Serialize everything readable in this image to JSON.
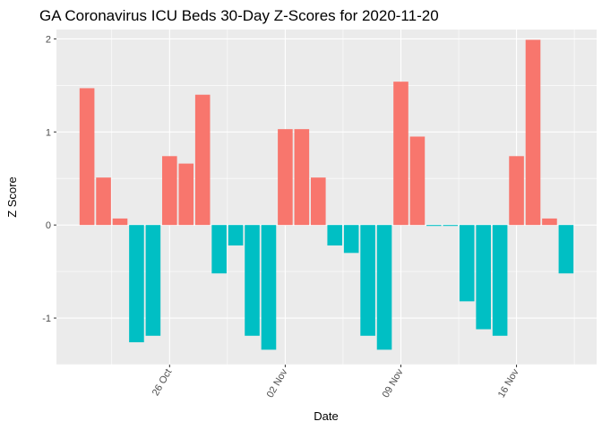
{
  "chart_data": {
    "type": "bar",
    "title": "GA Coronavirus ICU Beds 30-Day Z-Scores for 2020-11-20",
    "xlabel": "Date",
    "ylabel": "Z Score",
    "x_start": "2020-10-21",
    "x_end": "2020-11-19",
    "x_ticks": [
      {
        "label": "26 Oct",
        "date": "2020-10-26"
      },
      {
        "label": "02 Nov",
        "date": "2020-11-02"
      },
      {
        "label": "09 Nov",
        "date": "2020-11-09"
      },
      {
        "label": "16 Nov",
        "date": "2020-11-16"
      }
    ],
    "y_ticks": [
      {
        "label": "-1",
        "value": -1
      },
      {
        "label": "0",
        "value": 0
      },
      {
        "label": "1",
        "value": 1
      },
      {
        "label": "2",
        "value": 2
      }
    ],
    "ylim": [
      -1.5,
      2.1
    ],
    "grid": true,
    "colors": {
      "positive": "#F8766D",
      "negative": "#00BFC4",
      "panel": "#EBEBEB",
      "grid": "#FFFFFF"
    },
    "x": [
      "2020-10-21",
      "2020-10-22",
      "2020-10-23",
      "2020-10-24",
      "2020-10-25",
      "2020-10-26",
      "2020-10-27",
      "2020-10-28",
      "2020-10-29",
      "2020-10-30",
      "2020-10-31",
      "2020-11-01",
      "2020-11-02",
      "2020-11-03",
      "2020-11-04",
      "2020-11-05",
      "2020-11-06",
      "2020-11-07",
      "2020-11-08",
      "2020-11-09",
      "2020-11-10",
      "2020-11-11",
      "2020-11-12",
      "2020-11-13",
      "2020-11-14",
      "2020-11-15",
      "2020-11-16",
      "2020-11-17",
      "2020-11-18",
      "2020-11-19"
    ],
    "values": [
      1.47,
      0.51,
      0.07,
      -1.26,
      -1.19,
      0.74,
      0.66,
      1.4,
      -0.52,
      -0.22,
      -1.19,
      -1.34,
      1.03,
      1.03,
      0.51,
      -0.22,
      -0.3,
      -1.19,
      -1.34,
      1.54,
      0.95,
      -0.01,
      -0.01,
      -0.82,
      -1.12,
      -1.19,
      0.74,
      1.99,
      0.07,
      -0.52
    ]
  }
}
